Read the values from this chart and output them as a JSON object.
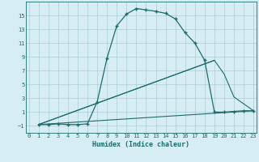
{
  "xlabel": "Humidex (Indice chaleur)",
  "bg_color": "#d6edf3",
  "grid_color": "#aacdd6",
  "line_color": "#1e6b6b",
  "line1_x": [
    1,
    2,
    3,
    4,
    5,
    6,
    7,
    8,
    9,
    10,
    11,
    12,
    13,
    14,
    15,
    16,
    17,
    18,
    19,
    20,
    21,
    22,
    23
  ],
  "line1_y": [
    -0.8,
    -0.8,
    -0.7,
    -0.8,
    -0.8,
    -0.7,
    2.5,
    8.8,
    13.5,
    15.2,
    16.0,
    15.8,
    15.6,
    15.3,
    14.5,
    12.5,
    11.0,
    8.5,
    1.0,
    1.0,
    1.1,
    1.2,
    1.2
  ],
  "line2_x": [
    1,
    23
  ],
  "line2_y": [
    -0.8,
    1.2
  ],
  "line3_x": [
    1,
    19,
    20,
    21,
    23
  ],
  "line3_y": [
    -0.8,
    8.5,
    6.5,
    3.2,
    1.2
  ],
  "line4_x": [
    1,
    19
  ],
  "line4_y": [
    -0.8,
    8.5
  ],
  "xlim": [
    -0.3,
    23.3
  ],
  "ylim": [
    -2.0,
    17.0
  ],
  "yticks": [
    -1,
    1,
    3,
    5,
    7,
    9,
    11,
    13,
    15
  ],
  "xticks": [
    0,
    1,
    2,
    3,
    4,
    5,
    6,
    7,
    8,
    9,
    10,
    11,
    12,
    13,
    14,
    15,
    16,
    17,
    18,
    19,
    20,
    21,
    22,
    23
  ],
  "xlabel_fontsize": 6.0,
  "tick_fontsize": 5.0
}
